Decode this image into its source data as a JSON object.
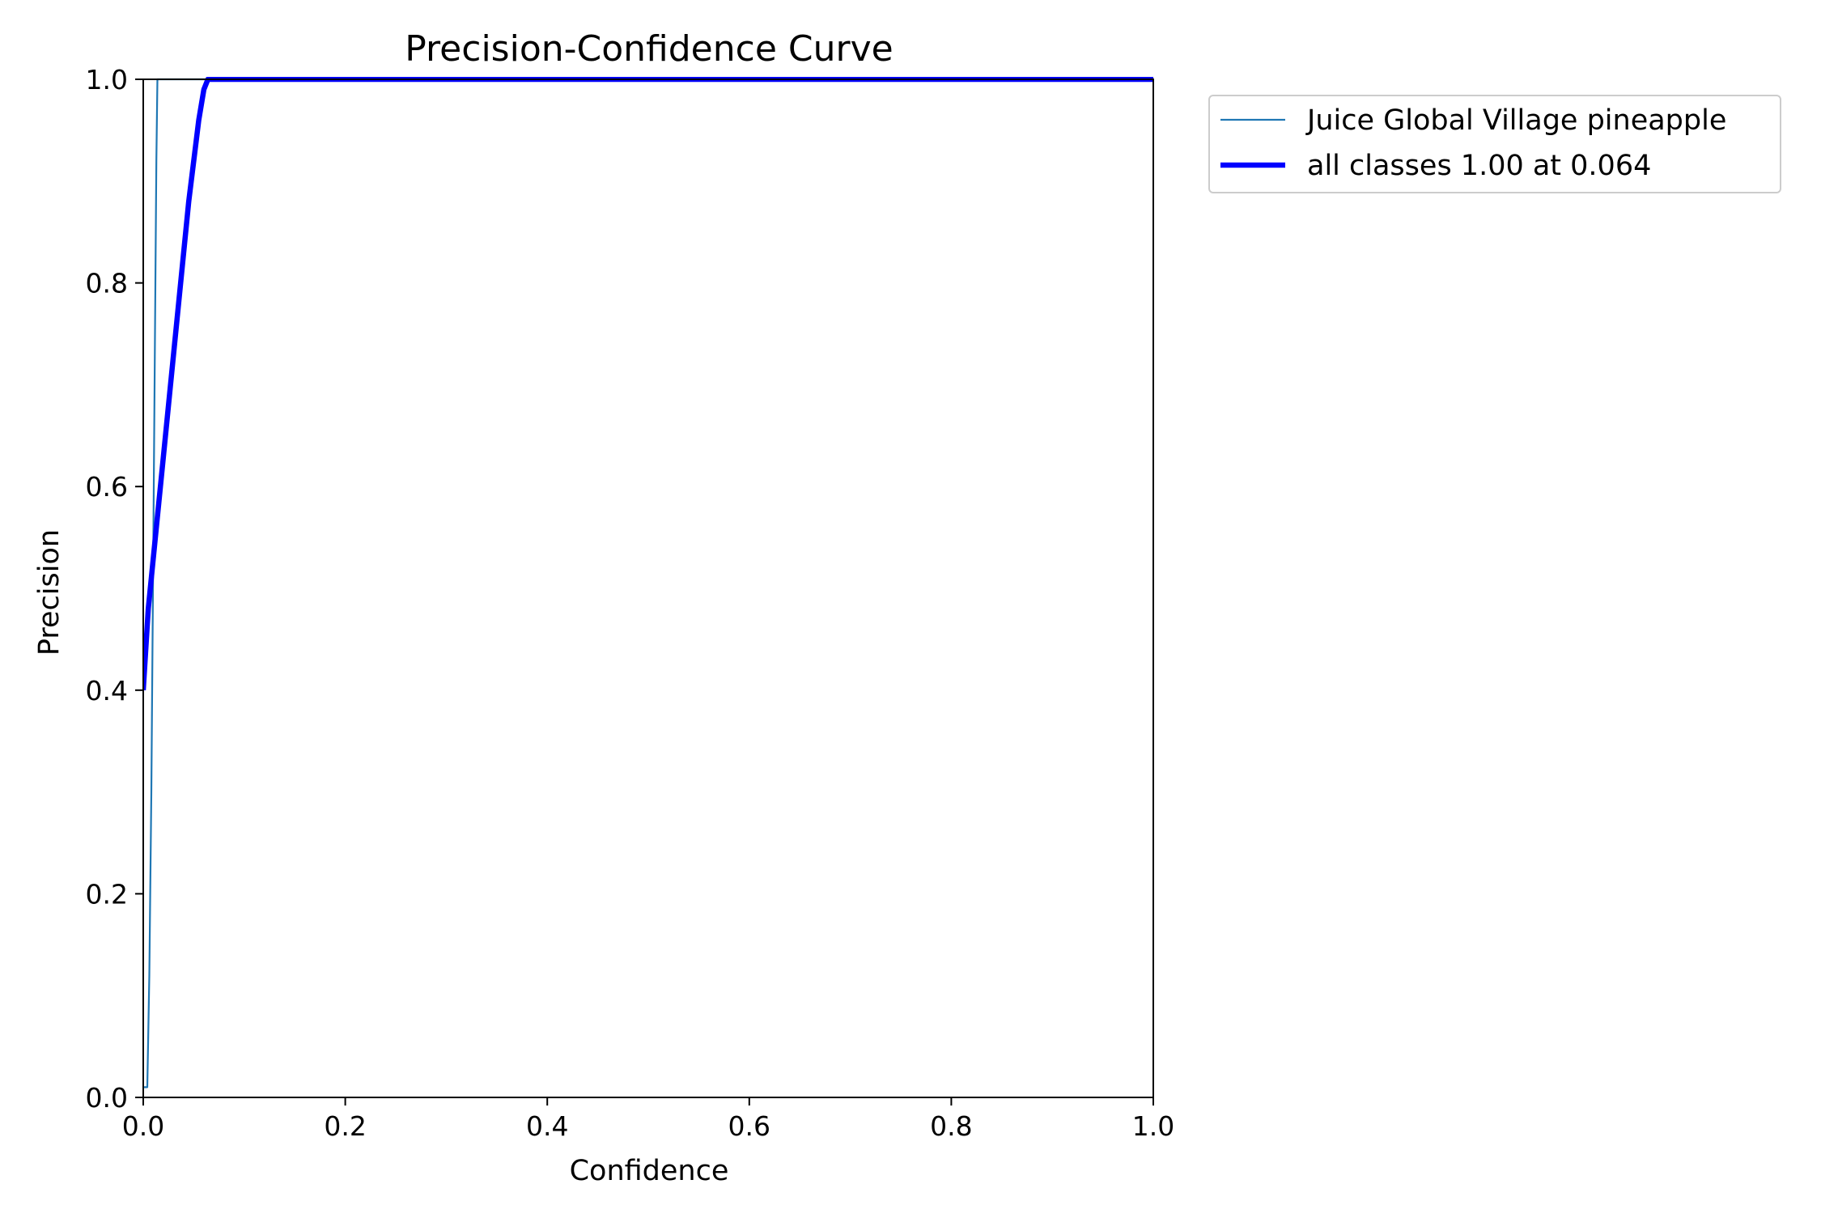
{
  "chart_data": {
    "type": "line",
    "title": "Precision-Confidence Curve",
    "xlabel": "Confidence",
    "ylabel": "Precision",
    "xlim": [
      0,
      1
    ],
    "ylim": [
      0,
      1
    ],
    "xticks": [
      "0.0",
      "0.2",
      "0.4",
      "0.6",
      "0.8",
      "1.0"
    ],
    "yticks": [
      "0.0",
      "0.2",
      "0.4",
      "0.6",
      "0.8",
      "1.0"
    ],
    "grid": false,
    "legend_position": "outside-right-top",
    "series": [
      {
        "name": "Juice Global Village pineapple",
        "color": "#1f77b4",
        "line_width": "thin",
        "x": [
          0.0,
          0.004,
          0.006,
          0.008,
          0.01,
          0.012,
          0.013,
          0.014,
          0.015,
          1.0
        ],
        "y": [
          0.01,
          0.01,
          0.12,
          0.3,
          0.55,
          0.8,
          0.92,
          1.0,
          1.0,
          1.0
        ]
      },
      {
        "name": "all classes 1.00 at 0.064",
        "color": "#0000ff",
        "line_width": "thick",
        "x": [
          0.0,
          0.005,
          0.015,
          0.025,
          0.035,
          0.045,
          0.055,
          0.06,
          0.064,
          1.0
        ],
        "y": [
          0.4,
          0.48,
          0.58,
          0.68,
          0.78,
          0.88,
          0.96,
          0.99,
          1.0,
          1.0
        ]
      }
    ]
  }
}
